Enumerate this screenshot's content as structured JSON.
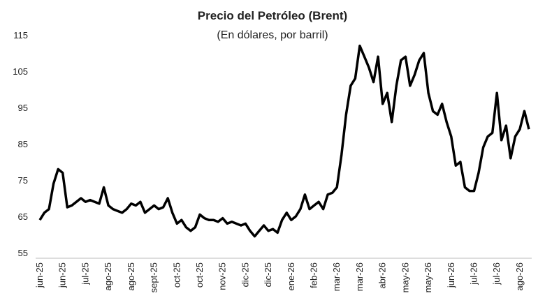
{
  "chart_data": {
    "type": "line",
    "title": "Precio del Petróleo (Brent)",
    "subtitle": "(En dólares, por barril)",
    "categories": [
      "jun-25",
      null,
      null,
      null,
      null,
      "jun-25",
      null,
      null,
      null,
      null,
      "jul-25",
      null,
      null,
      null,
      null,
      "ago-25",
      null,
      null,
      null,
      null,
      "ago-25",
      null,
      null,
      null,
      null,
      "sept-25",
      null,
      null,
      null,
      null,
      "oct-25",
      null,
      null,
      null,
      null,
      "oct-25",
      null,
      null,
      null,
      null,
      "nov-25",
      null,
      null,
      null,
      null,
      "dic-25",
      null,
      null,
      null,
      null,
      "dic-25",
      null,
      null,
      null,
      null,
      "ene-26",
      null,
      null,
      null,
      null,
      "feb-26",
      null,
      null,
      null,
      null,
      "mar-26",
      null,
      null,
      null,
      null,
      "mar-26",
      null,
      null,
      null,
      null,
      "abr-26",
      null,
      null,
      null,
      null,
      "may-26",
      null,
      null,
      null,
      null,
      "may-26",
      null,
      null,
      null,
      null,
      "jun-26",
      null,
      null,
      null,
      null,
      "jul-26",
      null,
      null,
      null,
      null,
      "jul-26",
      null,
      null,
      null,
      null,
      "ago-26",
      null,
      null
    ],
    "values": [
      64,
      66,
      67,
      74,
      78,
      77,
      67.5,
      68,
      69,
      70,
      69,
      69.5,
      69,
      68.5,
      73,
      68,
      67,
      66.5,
      66,
      67,
      68.5,
      68,
      69,
      66,
      67,
      68,
      67,
      67.5,
      70,
      66,
      63,
      64,
      62,
      61,
      62,
      65.5,
      64.5,
      64,
      64,
      63.5,
      64.5,
      63,
      63.5,
      63,
      62.5,
      63,
      61,
      59.5,
      61,
      62.5,
      61,
      61.5,
      60.5,
      64,
      66,
      64,
      65,
      67,
      71,
      67,
      68,
      69,
      67,
      71,
      71.5,
      73,
      82,
      93,
      101,
      103,
      112,
      109,
      106,
      102,
      109,
      96,
      99,
      91,
      101,
      108,
      109,
      101,
      104,
      108,
      110,
      99,
      94,
      93,
      96,
      91,
      87,
      79,
      80,
      73,
      72,
      72,
      77,
      84,
      87,
      88,
      99,
      86,
      90,
      81,
      87,
      89,
      94,
      89
    ],
    "color": "#000000",
    "ylim": [
      55,
      120
    ],
    "yticks": [
      55,
      65,
      75,
      85,
      95,
      105,
      115
    ],
    "grid": false
  }
}
